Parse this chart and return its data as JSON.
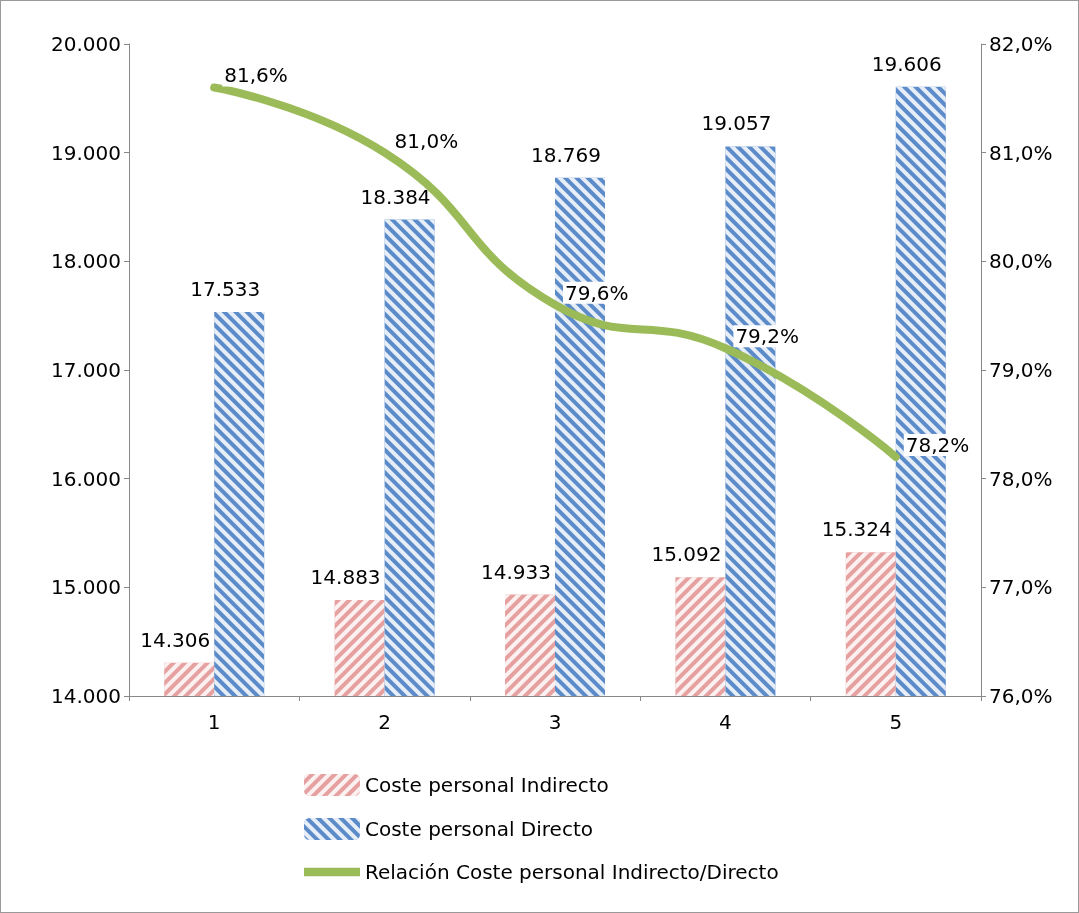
{
  "chart_data": {
    "type": "bar",
    "categories": [
      "1",
      "2",
      "3",
      "4",
      "5"
    ],
    "series": [
      {
        "name": "Coste personal Indirecto",
        "color": "#e6a0a0",
        "values": [
          14306,
          14883,
          14933,
          15092,
          15324
        ],
        "value_labels": [
          "14.306",
          "14.883",
          "14.933",
          "15.092",
          "15.324"
        ]
      },
      {
        "name": "Coste personal Directo",
        "color": "#5b8bc9",
        "values": [
          17533,
          18384,
          18769,
          19057,
          19606
        ],
        "value_labels": [
          "17.533",
          "18.384",
          "18.769",
          "19.057",
          "19.606"
        ]
      },
      {
        "name": "Relación Coste personal Indirecto/Directo",
        "type": "line",
        "axis": "y2",
        "color": "#9bbb59",
        "values": [
          81.6,
          81.0,
          79.6,
          79.2,
          78.2
        ],
        "value_labels": [
          "81,6%",
          "81,0%",
          "79,6%",
          "79,2%",
          "78,2%"
        ]
      }
    ],
    "ylim": [
      14000,
      20000
    ],
    "yticks": [
      {
        "value": 14000,
        "label": "14.000"
      },
      {
        "value": 15000,
        "label": "15.000"
      },
      {
        "value": 16000,
        "label": "16.000"
      },
      {
        "value": 17000,
        "label": "17.000"
      },
      {
        "value": 18000,
        "label": "18.000"
      },
      {
        "value": 19000,
        "label": "19.000"
      },
      {
        "value": 20000,
        "label": "20.000"
      }
    ],
    "y2lim": [
      76,
      82
    ],
    "y2ticks": [
      {
        "value": 76,
        "label": "76,0%"
      },
      {
        "value": 77,
        "label": "77,0%"
      },
      {
        "value": 78,
        "label": "78,0%"
      },
      {
        "value": 79,
        "label": "79,0%"
      },
      {
        "value": 80,
        "label": "80,0%"
      },
      {
        "value": 81,
        "label": "81,0%"
      },
      {
        "value": 82,
        "label": "82,0%"
      }
    ],
    "grid": false,
    "legend": "bottom",
    "marker": "none",
    "line_style": "solid"
  }
}
